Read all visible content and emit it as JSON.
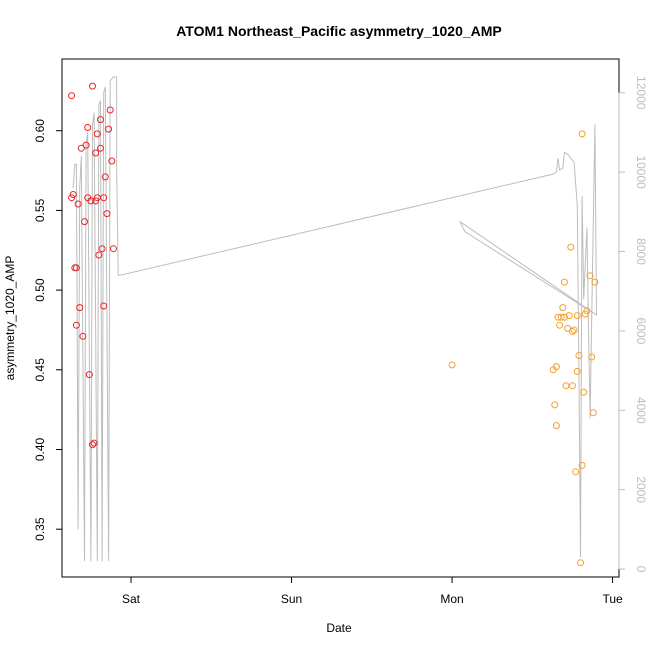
{
  "chart_data": {
    "type": "scatter",
    "title": "ATOM1 Northeast_Pacific asymmetry_1020_AMP",
    "xlabel": "Date",
    "ylabel": "asymmetry_1020_AMP",
    "x_ticks": [
      {
        "label": "Sat",
        "day": 1.0
      },
      {
        "label": "Sun",
        "day": 2.0
      },
      {
        "label": "Mon",
        "day": 3.0
      },
      {
        "label": "Tue",
        "day": 4.0
      }
    ],
    "xlim_days": [
      0.57,
      4.04
    ],
    "ylim": [
      0.32,
      0.645
    ],
    "y_ticks": [
      0.35,
      0.4,
      0.45,
      0.5,
      0.55,
      0.6
    ],
    "y_tick_labels": [
      "0.35",
      "0.40",
      "0.45",
      "0.50",
      "0.55",
      "0.60"
    ],
    "y2lim": [
      -200,
      12850
    ],
    "y2_ticks": [
      0,
      2000,
      4000,
      6000,
      8000,
      10000,
      12000
    ],
    "y2_tick_labels": [
      "0",
      "2000",
      "4000",
      "6000",
      "8000",
      "10000",
      "12000"
    ],
    "grid": false,
    "legend": "none",
    "series": [
      {
        "color": "#e8262b",
        "marker": "circle-open",
        "points": [
          [
            0.63,
            0.622
          ],
          [
            0.63,
            0.558
          ],
          [
            0.64,
            0.56
          ],
          [
            0.65,
            0.514
          ],
          [
            0.66,
            0.514
          ],
          [
            0.66,
            0.478
          ],
          [
            0.67,
            0.554
          ],
          [
            0.68,
            0.489
          ],
          [
            0.69,
            0.589
          ],
          [
            0.7,
            0.471
          ],
          [
            0.71,
            0.543
          ],
          [
            0.72,
            0.591
          ],
          [
            0.73,
            0.602
          ],
          [
            0.73,
            0.558
          ],
          [
            0.74,
            0.447
          ],
          [
            0.75,
            0.556
          ],
          [
            0.76,
            0.628
          ],
          [
            0.76,
            0.403
          ],
          [
            0.77,
            0.404
          ],
          [
            0.78,
            0.556
          ],
          [
            0.78,
            0.586
          ],
          [
            0.79,
            0.558
          ],
          [
            0.79,
            0.598
          ],
          [
            0.8,
            0.522
          ],
          [
            0.81,
            0.607
          ],
          [
            0.81,
            0.589
          ],
          [
            0.82,
            0.526
          ],
          [
            0.83,
            0.558
          ],
          [
            0.83,
            0.49
          ],
          [
            0.84,
            0.571
          ],
          [
            0.85,
            0.548
          ],
          [
            0.86,
            0.601
          ],
          [
            0.87,
            0.613
          ],
          [
            0.88,
            0.581
          ],
          [
            0.89,
            0.526
          ]
        ]
      },
      {
        "color": "#f0a030",
        "marker": "circle-open",
        "points": [
          [
            3.0,
            0.453
          ],
          [
            3.63,
            0.45
          ],
          [
            3.64,
            0.428
          ],
          [
            3.65,
            0.415
          ],
          [
            3.65,
            0.452
          ],
          [
            3.66,
            0.483
          ],
          [
            3.67,
            0.478
          ],
          [
            3.68,
            0.483
          ],
          [
            3.69,
            0.489
          ],
          [
            3.7,
            0.483
          ],
          [
            3.7,
            0.505
          ],
          [
            3.71,
            0.44
          ],
          [
            3.72,
            0.476
          ],
          [
            3.73,
            0.484
          ],
          [
            3.74,
            0.527
          ],
          [
            3.75,
            0.44
          ],
          [
            3.75,
            0.474
          ],
          [
            3.76,
            0.475
          ],
          [
            3.77,
            0.386
          ],
          [
            3.78,
            0.484
          ],
          [
            3.78,
            0.449
          ],
          [
            3.79,
            0.459
          ],
          [
            3.8,
            0.329
          ],
          [
            3.81,
            0.39
          ],
          [
            3.81,
            0.598
          ],
          [
            3.82,
            0.436
          ],
          [
            3.83,
            0.485
          ],
          [
            3.84,
            0.487
          ],
          [
            3.86,
            0.509
          ],
          [
            3.87,
            0.458
          ],
          [
            3.88,
            0.423
          ],
          [
            3.89,
            0.505
          ]
        ]
      }
    ],
    "secondary_line": {
      "color": "#bdbdbd",
      "axis": "right",
      "points": [
        [
          0.64,
          9600
        ],
        [
          0.65,
          10200
        ],
        [
          0.66,
          10200
        ],
        [
          0.67,
          1000
        ],
        [
          0.68,
          9600
        ],
        [
          0.69,
          10400
        ],
        [
          0.71,
          200
        ],
        [
          0.72,
          10700
        ],
        [
          0.73,
          11000
        ],
        [
          0.75,
          200
        ],
        [
          0.76,
          11200
        ],
        [
          0.77,
          11500
        ],
        [
          0.79,
          200
        ],
        [
          0.8,
          11700
        ],
        [
          0.81,
          11800
        ],
        [
          0.82,
          200
        ],
        [
          0.83,
          12000
        ],
        [
          0.84,
          12150
        ],
        [
          0.86,
          200
        ],
        [
          0.87,
          12300
        ],
        [
          0.89,
          12400
        ],
        [
          0.91,
          12400
        ],
        [
          0.91,
          10200
        ],
        [
          0.92,
          7400
        ],
        [
          0.93,
          7400
        ],
        [
          3.63,
          9950
        ],
        [
          3.65,
          10000
        ],
        [
          3.66,
          10350
        ],
        [
          3.67,
          10050
        ],
        [
          3.69,
          10100
        ],
        [
          3.7,
          10500
        ],
        [
          3.72,
          10450
        ],
        [
          3.74,
          10350
        ],
        [
          3.76,
          10250
        ],
        [
          3.77,
          9700
        ],
        [
          3.78,
          9150
        ],
        [
          3.79,
          5100
        ],
        [
          3.8,
          300
        ],
        [
          3.81,
          9400
        ],
        [
          3.82,
          6800
        ],
        [
          3.84,
          8600
        ],
        [
          3.85,
          6100
        ],
        [
          3.86,
          3800
        ],
        [
          3.87,
          6300
        ],
        [
          3.89,
          11200
        ],
        [
          3.9,
          6400
        ],
        [
          3.05,
          8750
        ],
        [
          3.08,
          8500
        ],
        [
          3.9,
          6400
        ]
      ]
    }
  }
}
